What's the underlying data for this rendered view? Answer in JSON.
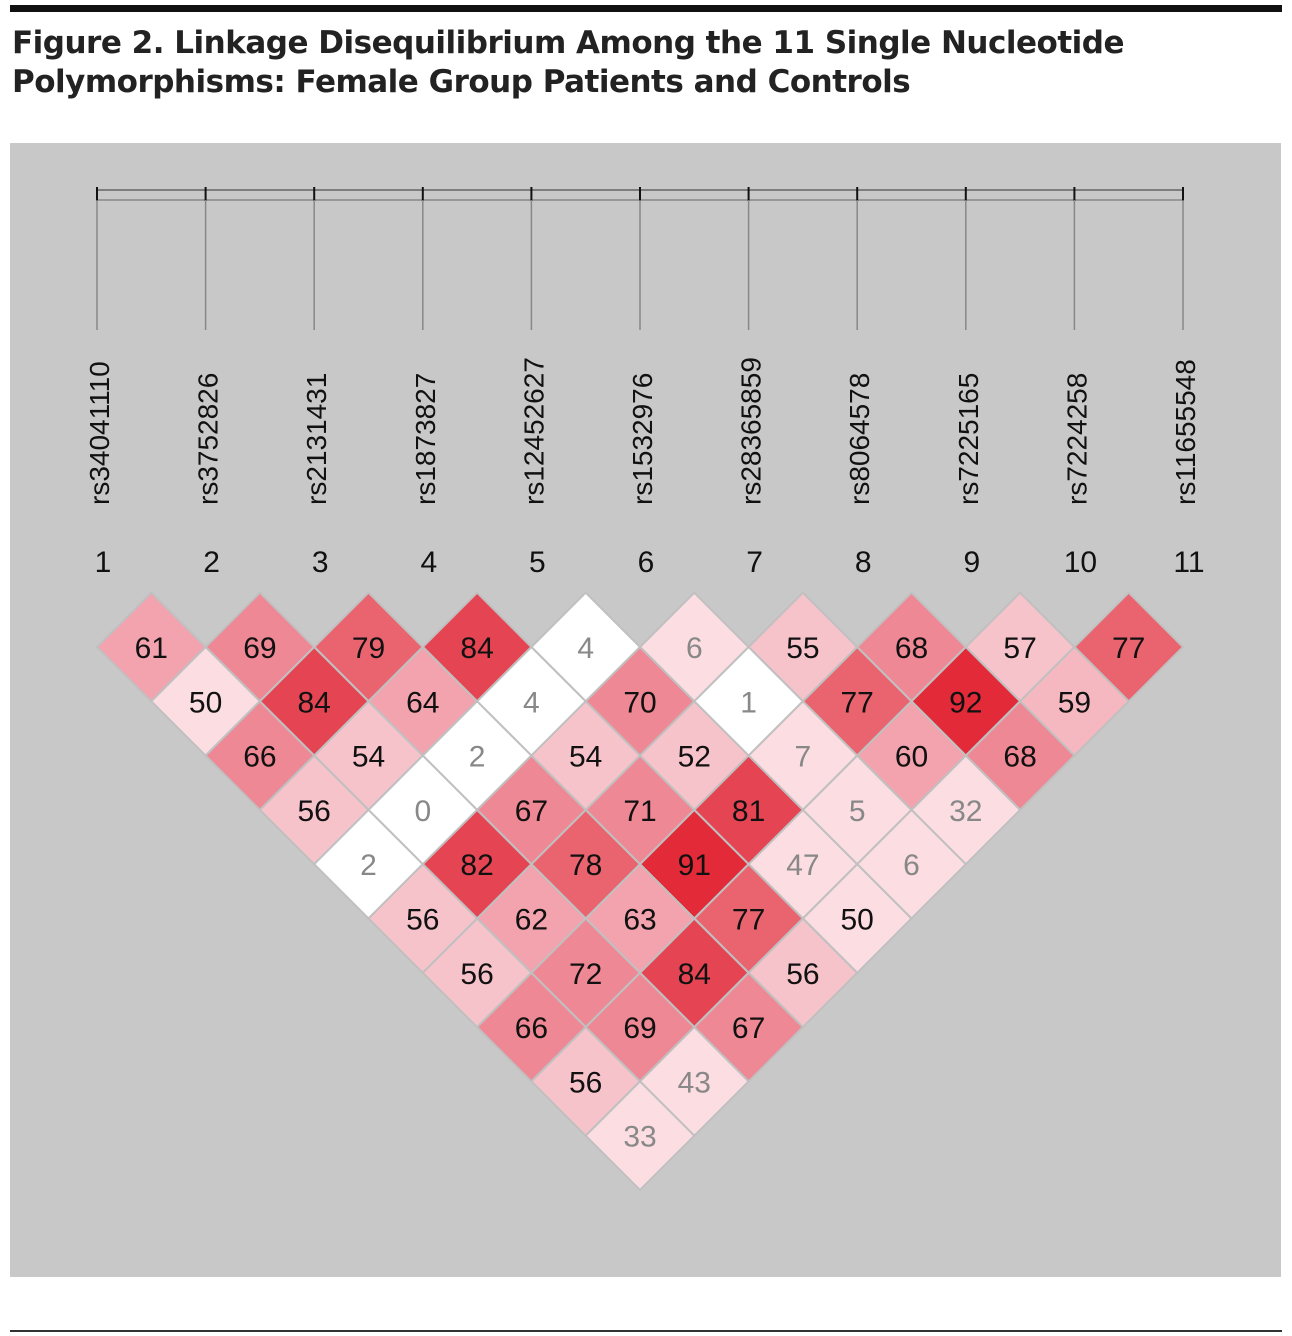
{
  "title": "Figure 2. Linkage Disequilibrium Among the 11 Single Nucleotide Polymorphisms: Female Group Patients and Controls",
  "chart_data": {
    "type": "heatmap",
    "subtype": "linkage-disequilibrium triangle",
    "snps": [
      "rs34041110",
      "rs3752826",
      "rs2131431",
      "rs1873827",
      "rs12452627",
      "rs1532976",
      "rs28365859",
      "rs8064578",
      "rs7225165",
      "rs7224258",
      "rs11655548"
    ],
    "snp_numbers": [
      "1",
      "2",
      "3",
      "4",
      "5",
      "6",
      "7",
      "8",
      "9",
      "10",
      "11"
    ],
    "colors": {
      "background": "#c8c8c8",
      "grid_line": "#c0c0c0",
      "dark_text": "#111111",
      "light_text": "#888888"
    },
    "rows_by_distance": [
      [
        [
          61,
          "#f2a3ae",
          "#111"
        ],
        [
          69,
          "#ee8894",
          "#111"
        ],
        [
          79,
          "#ea6470",
          "#111"
        ],
        [
          84,
          "#e54553",
          "#111"
        ],
        [
          4,
          "#ffffff",
          "#888"
        ],
        [
          6,
          "#fbdde2",
          "#888"
        ],
        [
          55,
          "#f6c3cb",
          "#111"
        ],
        [
          68,
          "#ee8894",
          "#111"
        ],
        [
          57,
          "#f6c3cb",
          "#111"
        ],
        [
          77,
          "#e9646f",
          "#111"
        ]
      ],
      [
        [
          50,
          "#fbdde2",
          "#111"
        ],
        [
          84,
          "#e54553",
          "#111"
        ],
        [
          64,
          "#f2a3ae",
          "#111"
        ],
        [
          4,
          "#ffffff",
          "#888"
        ],
        [
          70,
          "#ee8894",
          "#111"
        ],
        [
          1,
          "#ffffff",
          "#888"
        ],
        [
          77,
          "#e9646f",
          "#111"
        ],
        [
          92,
          "#e22a38",
          "#111"
        ],
        [
          59,
          "#f6b8c0",
          "#111"
        ]
      ],
      [
        [
          66,
          "#ee8894",
          "#111"
        ],
        [
          54,
          "#f6c3cb",
          "#111"
        ],
        [
          2,
          "#ffffff",
          "#888"
        ],
        [
          54,
          "#f6c3cb",
          "#111"
        ],
        [
          52,
          "#f6c3cb",
          "#111"
        ],
        [
          7,
          "#fbdde2",
          "#888"
        ],
        [
          60,
          "#f2a3ae",
          "#111"
        ],
        [
          68,
          "#ee8894",
          "#111"
        ]
      ],
      [
        [
          56,
          "#f6c3cb",
          "#111"
        ],
        [
          0,
          "#ffffff",
          "#888"
        ],
        [
          67,
          "#ee8894",
          "#111"
        ],
        [
          71,
          "#ee8894",
          "#111"
        ],
        [
          81,
          "#e54553",
          "#111"
        ],
        [
          5,
          "#fbdde2",
          "#888"
        ],
        [
          32,
          "#fbdde2",
          "#888"
        ]
      ],
      [
        [
          2,
          "#ffffff",
          "#888"
        ],
        [
          82,
          "#e54553",
          "#111"
        ],
        [
          78,
          "#e9646f",
          "#111"
        ],
        [
          91,
          "#e22a38",
          "#111"
        ],
        [
          47,
          "#fbdde2",
          "#888"
        ],
        [
          6,
          "#fbdde2",
          "#888"
        ]
      ],
      [
        [
          56,
          "#f6c3cb",
          "#111"
        ],
        [
          62,
          "#f2a3ae",
          "#111"
        ],
        [
          63,
          "#f2a3ae",
          "#111"
        ],
        [
          77,
          "#e9646f",
          "#111"
        ],
        [
          50,
          "#fbdde2",
          "#111"
        ]
      ],
      [
        [
          56,
          "#f6c3cb",
          "#111"
        ],
        [
          72,
          "#ee8894",
          "#111"
        ],
        [
          84,
          "#e54553",
          "#111"
        ],
        [
          56,
          "#f6c3cb",
          "#111"
        ]
      ],
      [
        [
          66,
          "#ee8894",
          "#111"
        ],
        [
          69,
          "#ee8894",
          "#111"
        ],
        [
          67,
          "#ee8894",
          "#111"
        ]
      ],
      [
        [
          56,
          "#f6c3cb",
          "#111"
        ],
        [
          43,
          "#fbdde2",
          "#888"
        ]
      ],
      [
        [
          33,
          "#fbdde2",
          "#888"
        ]
      ]
    ]
  }
}
